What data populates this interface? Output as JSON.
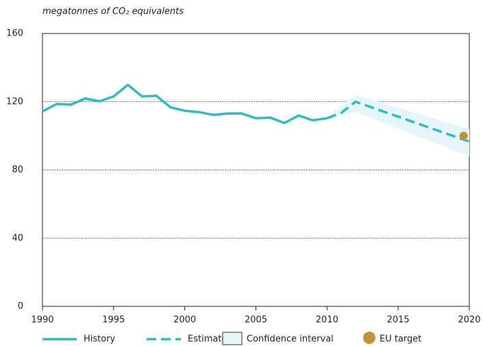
{
  "chart_data": {
    "type": "line",
    "ylabel": "megatonnes of CO₂ equivalents",
    "xlim": [
      1990,
      2020
    ],
    "xticks": [
      1990,
      1995,
      2000,
      2005,
      2010,
      2015,
      2020
    ],
    "ylim": [
      0,
      160
    ],
    "yticks": [
      0,
      40,
      80,
      120,
      160
    ],
    "grid": true,
    "series": [
      {
        "name": "History",
        "color": "#2bbcc4",
        "x": [
          1990,
          1991,
          1992,
          1993,
          1994,
          1995,
          1996,
          1997,
          1998,
          1999,
          2000,
          2001,
          2002,
          2003,
          2004,
          2005,
          2006,
          2007,
          2008,
          2009,
          2010
        ],
        "values": [
          114.3,
          118.7,
          118.3,
          121.9,
          120.3,
          123.1,
          129.9,
          123.1,
          123.5,
          116.7,
          114.7,
          113.9,
          112.3,
          113.1,
          113.1,
          110.3,
          110.7,
          107.5,
          111.9,
          109.1,
          110.3
        ]
      },
      {
        "name": "Estimate",
        "color": "#2bbcc4",
        "dashed": true,
        "x": [
          2010,
          2011,
          2012,
          2020
        ],
        "values": [
          110.3,
          113.5,
          120,
          96.6
        ]
      },
      {
        "name": "Confidence interval",
        "color": "#e6f6f8",
        "band": true,
        "x": [
          2010,
          2012,
          2020
        ],
        "lower": [
          110.3,
          114,
          88
        ],
        "upper": [
          110.3,
          124,
          104
        ]
      },
      {
        "name": "EU target",
        "color": "#c0923a",
        "point": true,
        "x": [
          2019.6
        ],
        "values": [
          100
        ]
      }
    ]
  }
}
